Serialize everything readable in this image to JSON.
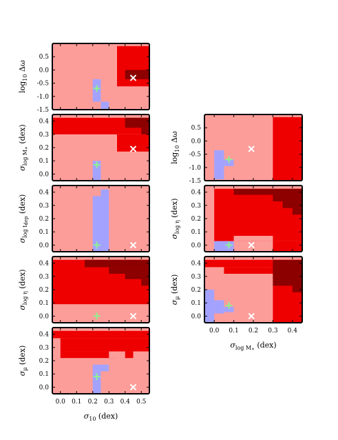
{
  "colors": {
    "light": "#fc9d9a",
    "mid": "#ee0000",
    "dark": "#8c0000",
    "blue": "#a3a3ff",
    "plus": "#8ff08f",
    "cross": "#ffffff"
  },
  "chart_data": [
    {
      "type": "heatmap",
      "panel": "left-1",
      "ylabel": "log10 Δω",
      "xlabel": "",
      "xlim": [
        -0.05,
        0.55
      ],
      "ylim": [
        -1.5,
        1.0
      ],
      "yticks": [
        "0.5",
        "0.0",
        "-0.5",
        "-1.0",
        "-1.5"
      ],
      "ytick_values": [
        0.5,
        0.0,
        -0.5,
        -1.0,
        -1.5
      ],
      "plus": [
        0.225,
        -0.7
      ],
      "cross": [
        0.45,
        -0.3
      ],
      "regions": [
        {
          "level": "light",
          "x": [
            -0.05,
            0.55
          ],
          "y": [
            -1.5,
            1.0
          ]
        },
        {
          "level": "mid",
          "x": [
            0.35,
            0.55
          ],
          "y": [
            -0.62,
            0.9
          ]
        },
        {
          "level": "dark",
          "x": [
            0.4,
            0.55
          ],
          "y": [
            -0.35,
            0.0
          ]
        },
        {
          "level": "blue",
          "x": [
            0.2,
            0.25
          ],
          "y": [
            -1.2,
            -0.35
          ]
        },
        {
          "level": "blue",
          "x": [
            0.25,
            0.3
          ],
          "y": [
            -1.5,
            -1.2
          ]
        }
      ]
    },
    {
      "type": "heatmap",
      "panel": "left-2",
      "ylabel": "σ log M* (dex)",
      "xlabel": "",
      "xlim": [
        -0.05,
        0.55
      ],
      "ylim": [
        -0.05,
        0.45
      ],
      "yticks": [
        "0.4",
        "0.3",
        "0.2",
        "0.1",
        "0.0"
      ],
      "ytick_values": [
        0.4,
        0.3,
        0.2,
        0.1,
        0.0
      ],
      "plus": [
        0.225,
        0.07
      ],
      "cross": [
        0.45,
        0.19
      ],
      "regions": [
        {
          "level": "light",
          "x": [
            -0.05,
            0.55
          ],
          "y": [
            -0.05,
            0.45
          ]
        },
        {
          "level": "mid",
          "x": [
            -0.05,
            0.55
          ],
          "y": [
            0.3,
            0.425
          ]
        },
        {
          "level": "mid",
          "x": [
            0.35,
            0.55
          ],
          "y": [
            0.17,
            0.3
          ]
        },
        {
          "level": "dark",
          "x": [
            0.4,
            0.55
          ],
          "y": [
            0.35,
            0.425
          ]
        },
        {
          "level": "dark",
          "x": [
            0.5,
            0.55
          ],
          "y": [
            0.3,
            0.35
          ]
        },
        {
          "level": "blue",
          "x": [
            0.2,
            0.25
          ],
          "y": [
            -0.05,
            0.1
          ]
        }
      ]
    },
    {
      "type": "heatmap",
      "panel": "left-3",
      "ylabel": "σ log t dep (dex)",
      "xlabel": "",
      "xlim": [
        -0.05,
        0.55
      ],
      "ylim": [
        -0.05,
        0.45
      ],
      "yticks": [
        "0.4",
        "0.3",
        "0.2",
        "0.1",
        "0.0"
      ],
      "ytick_values": [
        0.4,
        0.3,
        0.2,
        0.1,
        0.0
      ],
      "plus": [
        0.225,
        0.0
      ],
      "cross": [
        0.45,
        0.0
      ],
      "regions": [
        {
          "level": "light",
          "x": [
            -0.05,
            0.55
          ],
          "y": [
            -0.05,
            0.45
          ]
        },
        {
          "level": "blue",
          "x": [
            0.2,
            0.25
          ],
          "y": [
            -0.05,
            0.37
          ]
        },
        {
          "level": "blue",
          "x": [
            0.25,
            0.3
          ],
          "y": [
            -0.05,
            0.42
          ]
        }
      ]
    },
    {
      "type": "heatmap",
      "panel": "left-4",
      "ylabel": "σ log η (dex)",
      "xlabel": "",
      "xlim": [
        -0.05,
        0.55
      ],
      "ylim": [
        -0.05,
        0.45
      ],
      "yticks": [
        "0.4",
        "0.3",
        "0.2",
        "0.1",
        "0.0"
      ],
      "ytick_values": [
        0.4,
        0.3,
        0.2,
        0.1,
        0.0
      ],
      "plus": [
        0.225,
        0.0
      ],
      "cross": [
        0.45,
        0.0
      ],
      "regions": [
        {
          "level": "light",
          "x": [
            -0.05,
            0.55
          ],
          "y": [
            -0.05,
            0.45
          ]
        },
        {
          "level": "mid",
          "x": [
            -0.05,
            0.55
          ],
          "y": [
            0.09,
            0.425
          ]
        },
        {
          "level": "dark",
          "x": [
            0.15,
            0.55
          ],
          "y": [
            0.37,
            0.425
          ]
        },
        {
          "level": "dark",
          "x": [
            0.3,
            0.55
          ],
          "y": [
            0.32,
            0.37
          ]
        },
        {
          "level": "dark",
          "x": [
            0.4,
            0.55
          ],
          "y": [
            0.28,
            0.32
          ]
        },
        {
          "level": "dark",
          "x": [
            0.5,
            0.55
          ],
          "y": [
            0.23,
            0.28
          ]
        }
      ]
    },
    {
      "type": "heatmap",
      "panel": "left-5",
      "ylabel": "σ μ (dex)",
      "xlabel": "σ10 (dex)",
      "xlim": [
        -0.05,
        0.55
      ],
      "ylim": [
        -0.05,
        0.45
      ],
      "yticks": [
        "0.4",
        "0.3",
        "0.2",
        "0.1",
        "0.0"
      ],
      "ytick_values": [
        0.4,
        0.3,
        0.2,
        0.1,
        0.0
      ],
      "xticks": [
        "0.0",
        "0.1",
        "0.2",
        "0.3",
        "0.4",
        "0.5"
      ],
      "xtick_values": [
        0.0,
        0.1,
        0.2,
        0.3,
        0.4,
        0.5
      ],
      "plus": [
        0.225,
        0.08
      ],
      "cross": [
        0.45,
        0.0
      ],
      "regions": [
        {
          "level": "light",
          "x": [
            -0.05,
            0.55
          ],
          "y": [
            -0.05,
            0.45
          ]
        },
        {
          "level": "mid",
          "x": [
            -0.05,
            0.55
          ],
          "y": [
            0.37,
            0.425
          ]
        },
        {
          "level": "mid",
          "x": [
            0.0,
            0.55
          ],
          "y": [
            0.27,
            0.37
          ]
        },
        {
          "level": "mid",
          "x": [
            0.0,
            0.35
          ],
          "y": [
            0.22,
            0.27
          ]
        },
        {
          "level": "mid",
          "x": [
            0.4,
            0.45
          ],
          "y": [
            0.22,
            0.27
          ]
        },
        {
          "level": "light",
          "x": [
            0.3,
            0.35
          ],
          "y": [
            0.22,
            0.27
          ]
        },
        {
          "level": "blue",
          "x": [
            0.2,
            0.3
          ],
          "y": [
            0.12,
            0.17
          ]
        },
        {
          "level": "blue",
          "x": [
            0.2,
            0.25
          ],
          "y": [
            -0.05,
            0.12
          ]
        }
      ]
    },
    {
      "type": "heatmap",
      "panel": "right-1",
      "ylabel": "log10 Δω",
      "xlabel": "",
      "xlim": [
        -0.05,
        0.45
      ],
      "ylim": [
        -1.5,
        1.0
      ],
      "yticks": [
        "0.5",
        "0.0",
        "-0.5",
        "-1.0",
        "-1.5"
      ],
      "ytick_values": [
        0.5,
        0.0,
        -0.5,
        -1.0,
        -1.5
      ],
      "plus": [
        0.075,
        -0.7
      ],
      "cross": [
        0.19,
        -0.3
      ],
      "regions": [
        {
          "level": "light",
          "x": [
            -0.05,
            0.45
          ],
          "y": [
            -1.5,
            1.0
          ]
        },
        {
          "level": "mid",
          "x": [
            0.3,
            0.45
          ],
          "y": [
            -1.5,
            0.9
          ]
        },
        {
          "level": "blue",
          "x": [
            0.0,
            0.05
          ],
          "y": [
            -1.45,
            -0.35
          ]
        },
        {
          "level": "blue",
          "x": [
            0.05,
            0.1
          ],
          "y": [
            -0.95,
            -0.7
          ]
        }
      ]
    },
    {
      "type": "heatmap",
      "panel": "right-2",
      "ylabel": "σ log η (dex)",
      "xlabel": "",
      "xlim": [
        -0.05,
        0.45
      ],
      "ylim": [
        -0.05,
        0.45
      ],
      "yticks": [
        "0.4",
        "0.3",
        "0.2",
        "0.1",
        "0.0"
      ],
      "ytick_values": [
        0.4,
        0.3,
        0.2,
        0.1,
        0.0
      ],
      "plus": [
        0.075,
        0.0
      ],
      "cross": [
        0.19,
        0.0
      ],
      "regions": [
        {
          "level": "light",
          "x": [
            -0.05,
            0.45
          ],
          "y": [
            -0.05,
            0.45
          ]
        },
        {
          "level": "mid",
          "x": [
            0.0,
            0.45
          ],
          "y": [
            0.03,
            0.425
          ]
        },
        {
          "level": "light",
          "x": [
            0.1,
            0.3
          ],
          "y": [
            0.03,
            0.07
          ]
        },
        {
          "level": "mid",
          "x": [
            0.3,
            0.45
          ],
          "y": [
            -0.05,
            0.03
          ]
        },
        {
          "level": "dark",
          "x": [
            0.1,
            0.45
          ],
          "y": [
            0.38,
            0.425
          ]
        },
        {
          "level": "dark",
          "x": [
            0.3,
            0.45
          ],
          "y": [
            0.33,
            0.38
          ]
        },
        {
          "level": "dark",
          "x": [
            0.35,
            0.45
          ],
          "y": [
            0.28,
            0.33
          ]
        },
        {
          "level": "dark",
          "x": [
            0.4,
            0.45
          ],
          "y": [
            0.23,
            0.28
          ]
        },
        {
          "level": "blue",
          "x": [
            0.0,
            0.1
          ],
          "y": [
            -0.05,
            0.03
          ]
        }
      ]
    },
    {
      "type": "heatmap",
      "panel": "right-3",
      "ylabel": "σ μ (dex)",
      "xlabel": "σ log M* (dex)",
      "xlim": [
        -0.05,
        0.45
      ],
      "ylim": [
        -0.05,
        0.45
      ],
      "yticks": [
        "0.4",
        "0.3",
        "0.2",
        "0.1",
        "0.0"
      ],
      "ytick_values": [
        0.4,
        0.3,
        0.2,
        0.1,
        0.0
      ],
      "xticks": [
        "0.0",
        "0.1",
        "0.2",
        "0.3",
        "0.4"
      ],
      "xtick_values": [
        0.0,
        0.1,
        0.2,
        0.3,
        0.4
      ],
      "plus": [
        0.075,
        0.08
      ],
      "cross": [
        0.19,
        0.0
      ],
      "regions": [
        {
          "level": "light",
          "x": [
            -0.05,
            0.45
          ],
          "y": [
            -0.05,
            0.45
          ]
        },
        {
          "level": "mid",
          "x": [
            -0.05,
            0.45
          ],
          "y": [
            0.37,
            0.425
          ]
        },
        {
          "level": "mid",
          "x": [
            0.05,
            0.45
          ],
          "y": [
            0.32,
            0.37
          ]
        },
        {
          "level": "mid",
          "x": [
            0.3,
            0.45
          ],
          "y": [
            -0.05,
            0.32
          ]
        },
        {
          "level": "dark",
          "x": [
            0.3,
            0.45
          ],
          "y": [
            0.23,
            0.425
          ]
        },
        {
          "level": "dark",
          "x": [
            0.4,
            0.45
          ],
          "y": [
            0.18,
            0.23
          ]
        },
        {
          "level": "blue",
          "x": [
            -0.05,
            0.0
          ],
          "y": [
            -0.05,
            0.2
          ]
        },
        {
          "level": "blue",
          "x": [
            0.0,
            0.05
          ],
          "y": [
            0.02,
            0.12
          ]
        },
        {
          "level": "blue",
          "x": [
            0.05,
            0.1
          ],
          "y": [
            0.03,
            0.07
          ]
        }
      ]
    }
  ]
}
